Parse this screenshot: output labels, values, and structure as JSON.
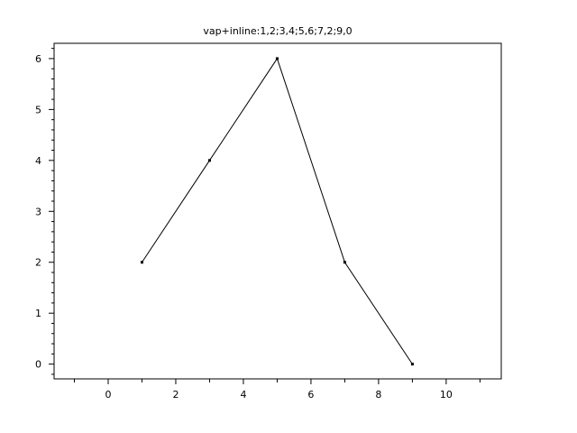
{
  "chart_data": {
    "type": "line",
    "title": "vap+inline:1,2;3,4;5,6;7,2;9,0",
    "xlabel": "",
    "ylabel": "",
    "x": [
      1,
      3,
      5,
      7,
      9
    ],
    "y": [
      2,
      4,
      6,
      2,
      0
    ],
    "xlim": [
      -1.6,
      11.63
    ],
    "ylim": [
      -0.29,
      6.3
    ],
    "x_ticks": [
      0,
      2,
      4,
      6,
      8,
      10
    ],
    "x_minor_ticks": [
      -1,
      1,
      3,
      5,
      7,
      9,
      11
    ],
    "y_ticks": [
      0,
      1,
      2,
      3,
      4,
      5,
      6
    ],
    "grid": false,
    "line_color": "#000000",
    "marker": "dot"
  }
}
